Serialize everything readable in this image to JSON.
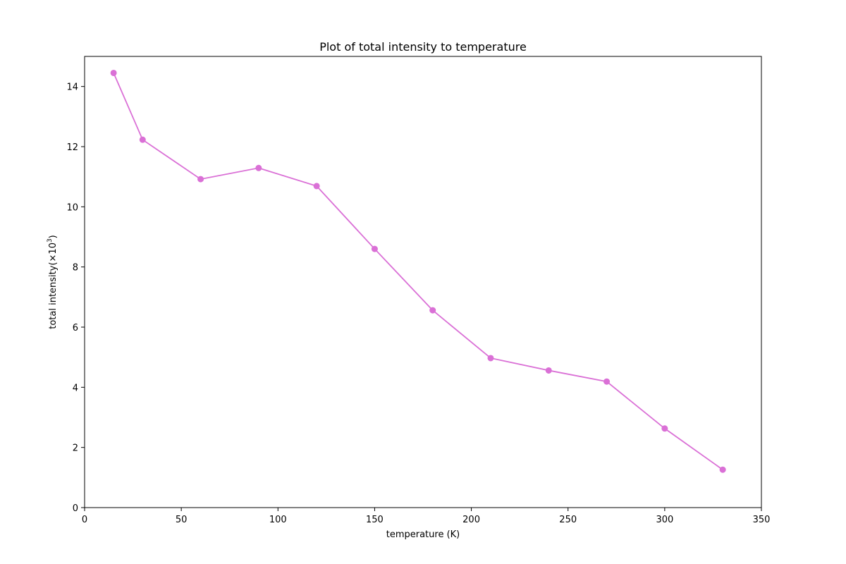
{
  "chart_data": {
    "type": "line",
    "title": "Plot of total intensity to temperature",
    "xlabel": "temperature (K)",
    "ylabel_base": "total intensity(×10",
    "ylabel_exp": "3",
    "ylabel_close": ")",
    "xlim": [
      0,
      350
    ],
    "ylim": [
      0,
      15
    ],
    "xticks": [
      0,
      50,
      100,
      150,
      200,
      250,
      300,
      350
    ],
    "yticks": [
      0,
      2,
      4,
      6,
      8,
      10,
      12,
      14
    ],
    "grid": false,
    "series": [
      {
        "x": [
          15,
          30,
          60,
          90,
          120,
          150,
          180,
          210,
          240,
          270,
          300,
          330
        ],
        "y": [
          14.45,
          12.23,
          10.92,
          11.29,
          10.69,
          8.6,
          6.56,
          4.97,
          4.56,
          4.19,
          2.63,
          1.26
        ],
        "color": "#da70d6",
        "marker": "circle"
      }
    ]
  }
}
